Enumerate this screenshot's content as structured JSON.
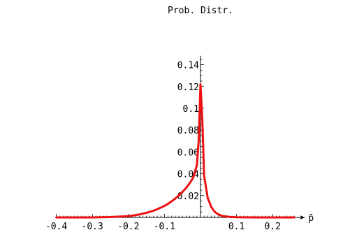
{
  "chart_data": {
    "type": "line",
    "title": "",
    "ylabel": "Prob. Distr.",
    "xlabel": "p̄",
    "xlim": [
      -0.4,
      0.27
    ],
    "ylim": [
      0,
      0.145
    ],
    "grid": false,
    "legend": "none",
    "x_ticks": [
      {
        "value": -0.4,
        "label": "-0.4"
      },
      {
        "value": -0.3,
        "label": "-0.3"
      },
      {
        "value": -0.2,
        "label": "-0.2"
      },
      {
        "value": -0.1,
        "label": "-0.1"
      },
      {
        "value": 0.1,
        "label": "0.1"
      },
      {
        "value": 0.2,
        "label": "0.2"
      }
    ],
    "y_ticks": [
      {
        "value": 0.02,
        "label": "0.02"
      },
      {
        "value": 0.04,
        "label": "0.04"
      },
      {
        "value": 0.06,
        "label": "0.06"
      },
      {
        "value": 0.08,
        "label": "0.08"
      },
      {
        "value": 0.1,
        "label": "0.1"
      },
      {
        "value": 0.12,
        "label": "0.12"
      },
      {
        "value": 0.14,
        "label": "0.14"
      }
    ],
    "series": [
      {
        "color": "#ee1111",
        "x": [
          -0.4,
          -0.35,
          -0.3,
          -0.25,
          -0.2,
          -0.175,
          -0.15,
          -0.125,
          -0.1,
          -0.09,
          -0.08,
          -0.07,
          -0.06,
          -0.05,
          -0.04,
          -0.03,
          -0.02,
          -0.01,
          -0.005,
          0.0,
          0.005,
          0.01,
          0.02,
          0.03,
          0.04,
          0.05,
          0.06,
          0.08,
          0.1,
          0.15,
          0.2,
          0.25,
          0.26
        ],
        "y": [
          0.0,
          0.0,
          0.0,
          0.0003,
          0.0012,
          0.0024,
          0.0042,
          0.0068,
          0.0105,
          0.0125,
          0.0148,
          0.0173,
          0.0202,
          0.0234,
          0.027,
          0.0313,
          0.0366,
          0.048,
          0.07,
          0.122,
          0.09,
          0.038,
          0.018,
          0.0095,
          0.005,
          0.0027,
          0.0014,
          0.0005,
          0.0002,
          0.0,
          0.0,
          0.0,
          0.0
        ]
      }
    ]
  }
}
